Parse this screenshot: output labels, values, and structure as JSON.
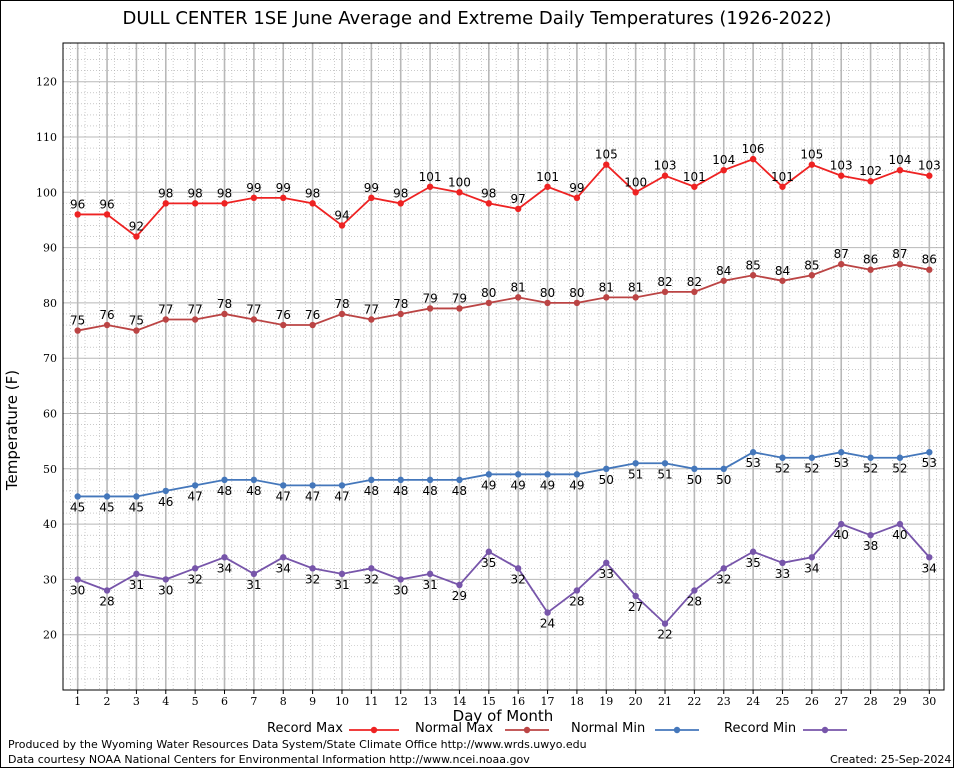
{
  "chart_data": {
    "type": "line",
    "title": "DULL CENTER 1SE June Average and Extreme Daily Temperatures (1926-2022)",
    "xlabel": "Day of Month",
    "ylabel": "Temperature (F)",
    "xlim": [
      0.5,
      30.5
    ],
    "ylim": [
      10,
      127
    ],
    "y_ticks": [
      20,
      30,
      40,
      50,
      60,
      70,
      80,
      90,
      100,
      110,
      120
    ],
    "x": [
      1,
      2,
      3,
      4,
      5,
      6,
      7,
      8,
      9,
      10,
      11,
      12,
      13,
      14,
      15,
      16,
      17,
      18,
      19,
      20,
      21,
      22,
      23,
      24,
      25,
      26,
      27,
      28,
      29,
      30
    ],
    "grid": true,
    "legend_position": "bottom",
    "series": [
      {
        "name": "Record Max",
        "color": "#ee2222",
        "label_pos": "above",
        "values": [
          96,
          96,
          92,
          98,
          98,
          98,
          99,
          99,
          98,
          94,
          99,
          98,
          101,
          100,
          98,
          97,
          101,
          99,
          105,
          100,
          103,
          101,
          104,
          106,
          101,
          105,
          103,
          102,
          104,
          103
        ]
      },
      {
        "name": "Normal Max",
        "color": "#bb4444",
        "label_pos": "above",
        "values": [
          75,
          76,
          75,
          77,
          77,
          78,
          77,
          76,
          76,
          78,
          77,
          78,
          79,
          79,
          80,
          81,
          80,
          80,
          81,
          81,
          82,
          82,
          84,
          85,
          84,
          85,
          87,
          86,
          87,
          86
        ]
      },
      {
        "name": "Normal Min",
        "color": "#4477bb",
        "label_pos": "below",
        "values": [
          45,
          45,
          45,
          46,
          47,
          48,
          48,
          47,
          47,
          47,
          48,
          48,
          48,
          48,
          49,
          49,
          49,
          49,
          50,
          51,
          51,
          50,
          50,
          53,
          52,
          52,
          53,
          52,
          52,
          53
        ]
      },
      {
        "name": "Record Min",
        "color": "#7755aa",
        "label_pos": "below",
        "values": [
          30,
          28,
          31,
          30,
          32,
          34,
          31,
          34,
          32,
          31,
          32,
          30,
          31,
          29,
          35,
          32,
          24,
          28,
          33,
          27,
          22,
          28,
          32,
          35,
          33,
          34,
          40,
          38,
          40,
          34
        ]
      }
    ]
  },
  "footer": {
    "line1": "Produced by the Wyoming Water Resources Data System/State Climate Office http://www.wrds.uwyo.edu",
    "line2": "Data courtesy NOAA National Centers for Environmental Information http://www.ncei.noaa.gov",
    "created": "Created:  25-Sep-2024"
  }
}
